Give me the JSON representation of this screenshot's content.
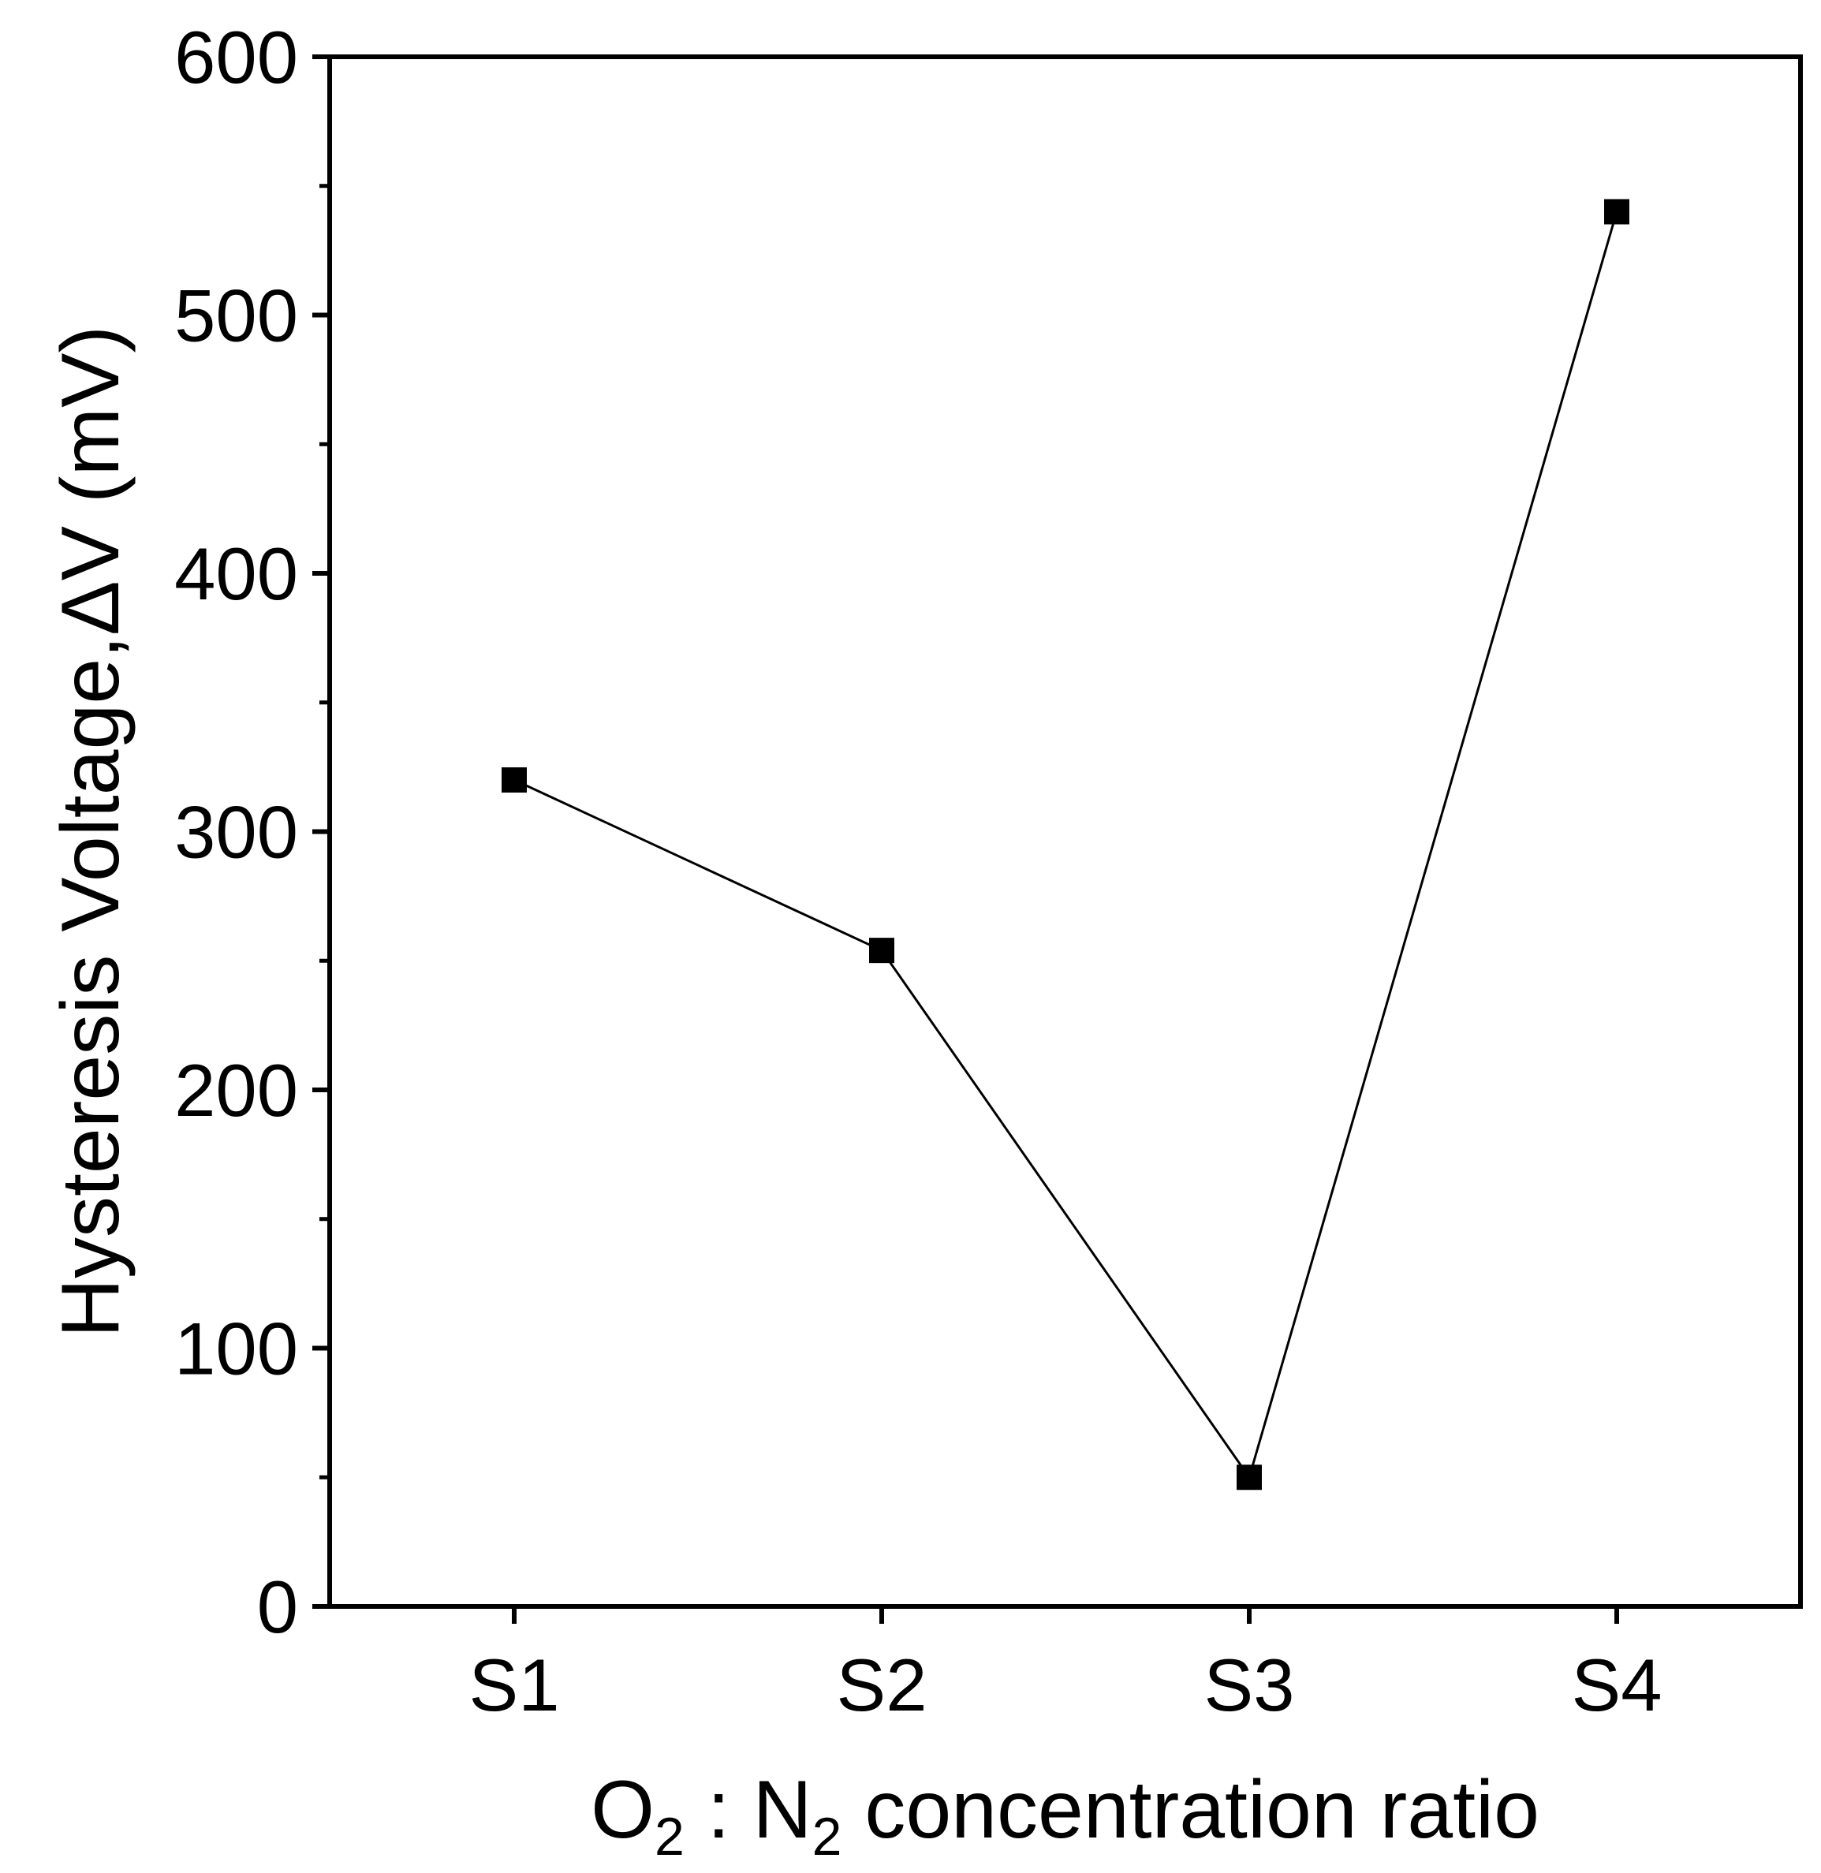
{
  "chart_data": {
    "type": "line",
    "categories": [
      "S1",
      "S2",
      "S3",
      "S4"
    ],
    "series": [
      {
        "name": "Hysteresis Voltage",
        "values": [
          320,
          254,
          50,
          540
        ],
        "marker": "square",
        "color": "#000000"
      }
    ],
    "xlabel": {
      "p1": "O",
      "s1": "2",
      "p2": " : N",
      "s2": "2",
      "p3": " concentration ratio"
    },
    "ylabel": "Hysteresis Voltage,ΔV (mV)",
    "ylim": [
      0,
      600
    ],
    "yticks": [
      0,
      100,
      200,
      300,
      400,
      500,
      600
    ],
    "ytick_labels": [
      "0",
      "100",
      "200",
      "300",
      "400",
      "500",
      "600"
    ],
    "minor_yticks": [
      50,
      150,
      250,
      350,
      450,
      550
    ],
    "grid": false,
    "legend": "none"
  }
}
